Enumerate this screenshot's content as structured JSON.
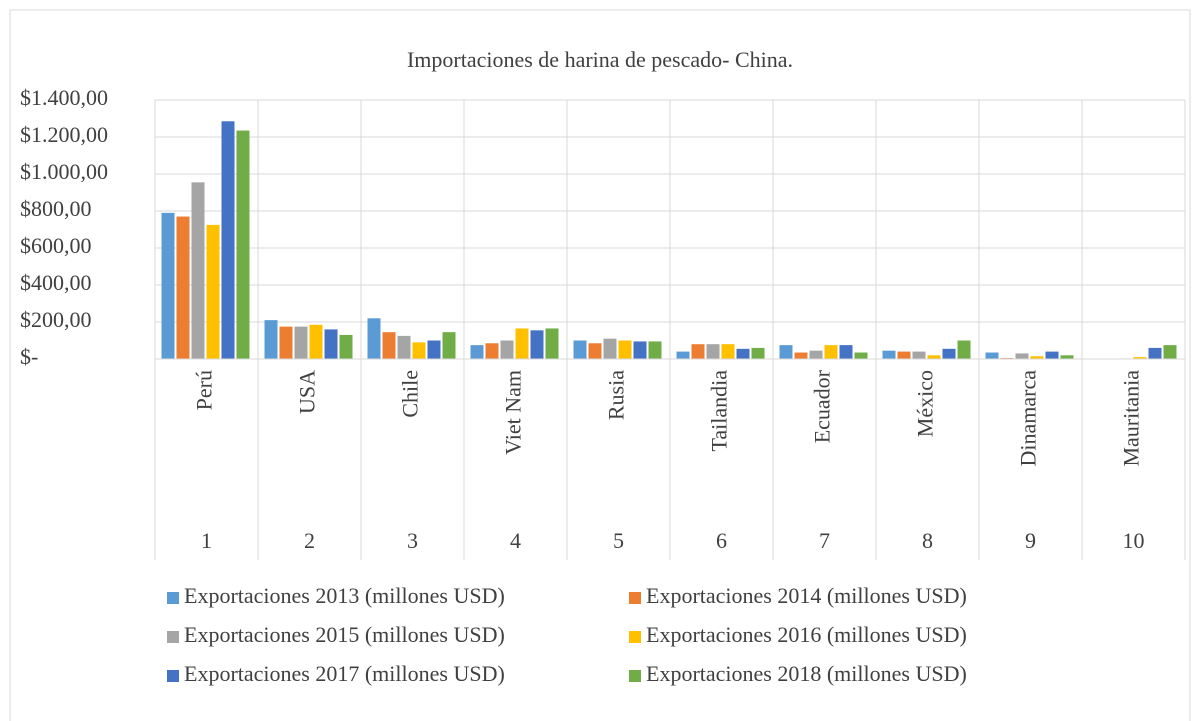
{
  "chart_data": {
    "type": "bar",
    "title": "Importaciones de harina de pescado- China.",
    "categories": [
      "Perú",
      "USA",
      "Chile",
      "Viet Nam",
      "Rusia",
      "Tailandia",
      "Ecuador",
      "México",
      "Dinamarca",
      "Mauritania"
    ],
    "category_numbers": [
      1,
      2,
      3,
      4,
      5,
      6,
      7,
      8,
      9,
      10
    ],
    "series": [
      {
        "name": "Exportaciones 2013 (millones USD)",
        "color": "#5b9bd5",
        "values": [
          790,
          210,
          220,
          75,
          100,
          40,
          75,
          45,
          35,
          null
        ]
      },
      {
        "name": "Exportaciones 2014 (millones USD)",
        "color": "#ed7d31",
        "values": [
          770,
          175,
          145,
          85,
          85,
          80,
          35,
          40,
          5,
          null
        ]
      },
      {
        "name": "Exportaciones 2015 (millones USD)",
        "color": "#a5a5a5",
        "values": [
          955,
          175,
          125,
          100,
          110,
          80,
          45,
          40,
          30,
          3
        ]
      },
      {
        "name": "Exportaciones 2016 (millones USD)",
        "color": "#ffc000",
        "values": [
          725,
          185,
          90,
          165,
          100,
          80,
          75,
          20,
          15,
          10
        ]
      },
      {
        "name": "Exportaciones 2017 (millones USD)",
        "color": "#4472c4",
        "values": [
          1285,
          160,
          100,
          155,
          95,
          55,
          75,
          55,
          40,
          60
        ]
      },
      {
        "name": "Exportaciones 2018 (millones USD)",
        "color": "#70ad47",
        "values": [
          1235,
          130,
          145,
          165,
          95,
          60,
          35,
          100,
          20,
          75
        ]
      }
    ],
    "ylim": [
      0,
      1400
    ],
    "yticks": [
      {
        "value": 0,
        "label": "$-"
      },
      {
        "value": 200,
        "label": "$200,00"
      },
      {
        "value": 400,
        "label": "$400,00"
      },
      {
        "value": 600,
        "label": "$600,00"
      },
      {
        "value": 800,
        "label": "$800,00"
      },
      {
        "value": 1000,
        "label": "$1.000,00"
      },
      {
        "value": 1200,
        "label": "$1.200,00"
      },
      {
        "value": 1400,
        "label": "$1.400,00"
      }
    ],
    "grid": true
  }
}
